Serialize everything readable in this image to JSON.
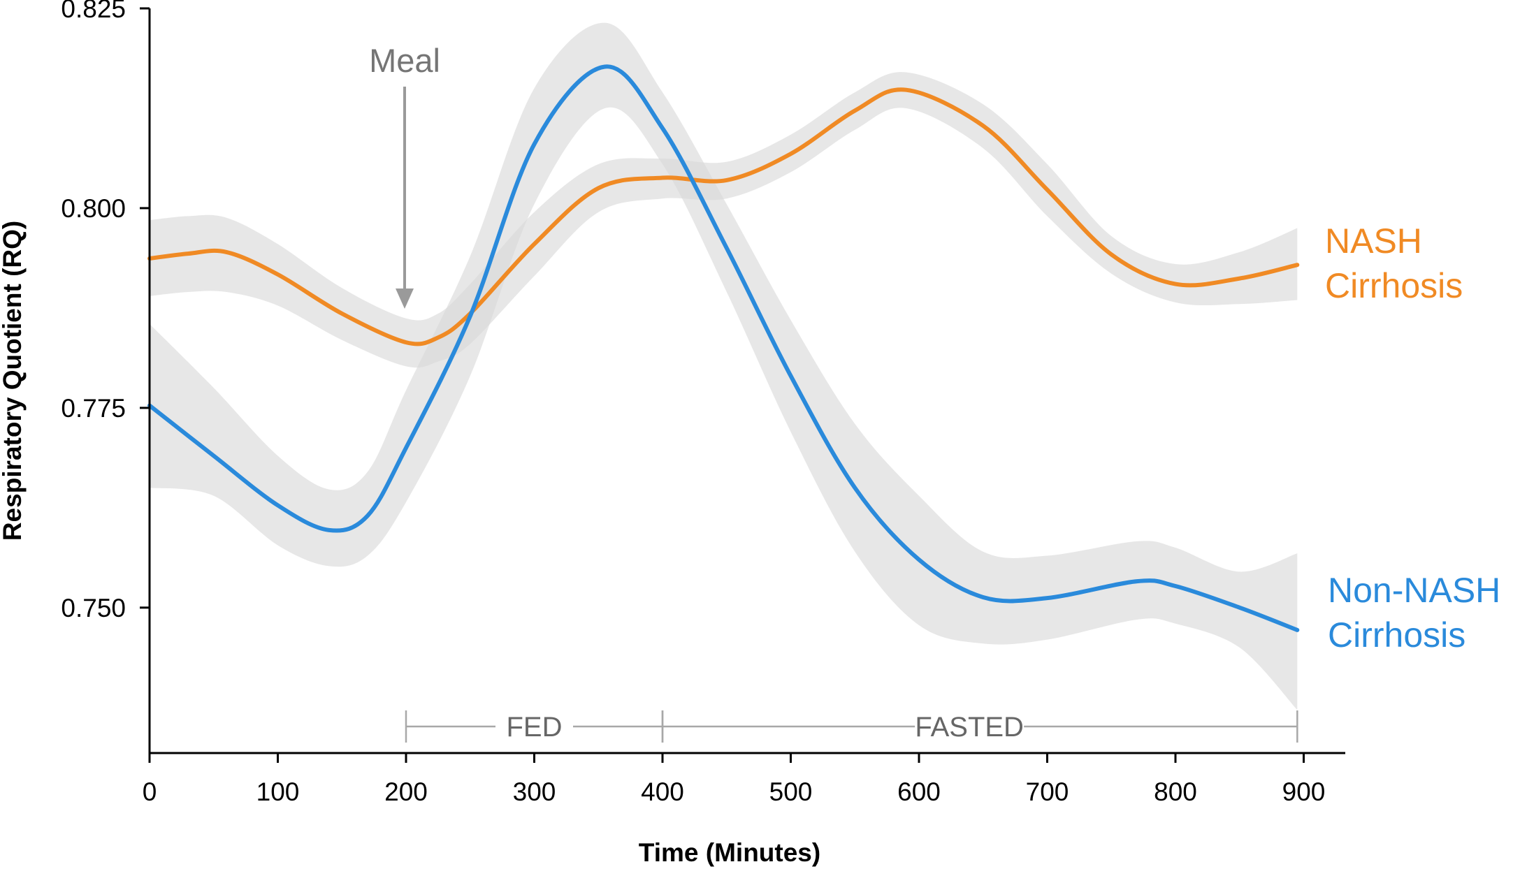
{
  "chart_data": {
    "type": "line",
    "title": "",
    "xlabel": "Time (Minutes)",
    "ylabel": "Respiratory Quotient (RQ)",
    "xlim": [
      0,
      925
    ],
    "ylim": [
      0.7318,
      0.825
    ],
    "x_ticks": [
      0,
      100,
      200,
      300,
      400,
      500,
      600,
      700,
      800,
      900
    ],
    "x_tick_labels": [
      "0",
      "100",
      "200",
      "300",
      "400",
      "500",
      "600",
      "700",
      "800",
      "900"
    ],
    "y_ticks": [
      0.75,
      0.775,
      0.8,
      0.825
    ],
    "y_tick_labels": [
      "0.750",
      "0.775",
      "0.800",
      "0.825"
    ],
    "grid": false,
    "annotations": {
      "meal": {
        "label": "Meal",
        "x": 200
      },
      "periods": [
        {
          "label": "FED",
          "start": 200,
          "end": 400
        },
        {
          "label": "FASTED",
          "start": 400,
          "end": 895
        }
      ]
    },
    "series": [
      {
        "name": "NASH Cirrhosis",
        "label_lines": [
          "NASH",
          "Cirrhosis"
        ],
        "color": "#F08A24",
        "x": [
          0,
          30,
          60,
          100,
          150,
          200,
          225,
          250,
          300,
          350,
          400,
          450,
          500,
          550,
          590,
          650,
          700,
          750,
          800,
          850,
          895
        ],
        "values": [
          0.7937,
          0.7943,
          0.7945,
          0.7917,
          0.7868,
          0.7832,
          0.7838,
          0.7868,
          0.7955,
          0.8025,
          0.8038,
          0.8035,
          0.8068,
          0.8122,
          0.8148,
          0.8103,
          0.8023,
          0.7942,
          0.7905,
          0.7912,
          0.7929
        ],
        "ci_upper": [
          0.7985,
          0.799,
          0.7988,
          0.7955,
          0.79,
          0.7862,
          0.7868,
          0.7905,
          0.7995,
          0.8055,
          0.8062,
          0.8058,
          0.8092,
          0.8145,
          0.817,
          0.813,
          0.8055,
          0.7965,
          0.793,
          0.7945,
          0.7975
        ],
        "ci_lower": [
          0.789,
          0.7895,
          0.7895,
          0.7878,
          0.7835,
          0.7802,
          0.7808,
          0.783,
          0.7915,
          0.7995,
          0.8012,
          0.8012,
          0.8045,
          0.8098,
          0.8125,
          0.8075,
          0.799,
          0.7918,
          0.7882,
          0.788,
          0.7885
        ]
      },
      {
        "name": "Non-NASH Cirrhosis",
        "label_lines": [
          "Non-NASH",
          "Cirrhosis"
        ],
        "color": "#2A8ADB",
        "x": [
          0,
          50,
          100,
          140,
          170,
          200,
          250,
          300,
          355,
          400,
          450,
          500,
          550,
          600,
          650,
          700,
          770,
          800,
          850,
          895
        ],
        "values": [
          0.7753,
          0.769,
          0.7628,
          0.7597,
          0.7615,
          0.77,
          0.7865,
          0.808,
          0.8177,
          0.81,
          0.795,
          0.779,
          0.765,
          0.756,
          0.7513,
          0.7512,
          0.7533,
          0.7527,
          0.75,
          0.7472
        ],
        "ci_upper": [
          0.7855,
          0.7775,
          0.769,
          0.7648,
          0.767,
          0.7772,
          0.794,
          0.815,
          0.8232,
          0.8145,
          0.8005,
          0.786,
          0.773,
          0.764,
          0.757,
          0.7565,
          0.7583,
          0.7575,
          0.7545,
          0.7568
        ],
        "ci_lower": [
          0.765,
          0.764,
          0.7578,
          0.7552,
          0.7565,
          0.7632,
          0.779,
          0.8005,
          0.8125,
          0.8055,
          0.7895,
          0.772,
          0.757,
          0.7478,
          0.7455,
          0.746,
          0.7485,
          0.748,
          0.745,
          0.7372
        ]
      }
    ]
  }
}
